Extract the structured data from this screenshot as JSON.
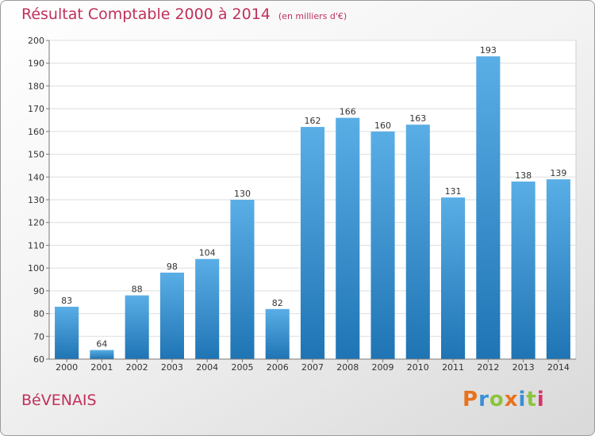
{
  "header": {
    "title": "Résultat Comptable 2000 à 2014",
    "unit": "(en milliers d'€)"
  },
  "footer": {
    "commune": "BéVENAIS",
    "logo_text": "Proxiti"
  },
  "colors": {
    "title": "#c0305a",
    "bar_top": "#5aaee6",
    "bar_bottom": "#1f74b4",
    "logo_letters": [
      "#e8721c",
      "#3a8fd6",
      "#8cc43c",
      "#e8721c",
      "#3a8fd6",
      "#8cc43c",
      "#d6336c"
    ]
  },
  "chart_data": {
    "type": "bar",
    "title": "Résultat Comptable 2000 à 2014",
    "subtitle": "(en milliers d'€)",
    "xlabel": "",
    "ylabel": "",
    "categories": [
      "2000",
      "2001",
      "2002",
      "2003",
      "2004",
      "2005",
      "2006",
      "2007",
      "2008",
      "2009",
      "2010",
      "2011",
      "2012",
      "2013",
      "2014"
    ],
    "values": [
      83,
      64,
      88,
      98,
      104,
      130,
      82,
      162,
      166,
      160,
      163,
      131,
      193,
      138,
      139
    ],
    "ylim": [
      60,
      200
    ],
    "yticks": [
      60,
      70,
      80,
      90,
      100,
      110,
      120,
      130,
      140,
      150,
      160,
      170,
      180,
      190,
      200
    ],
    "grid": true,
    "legend": "none"
  }
}
